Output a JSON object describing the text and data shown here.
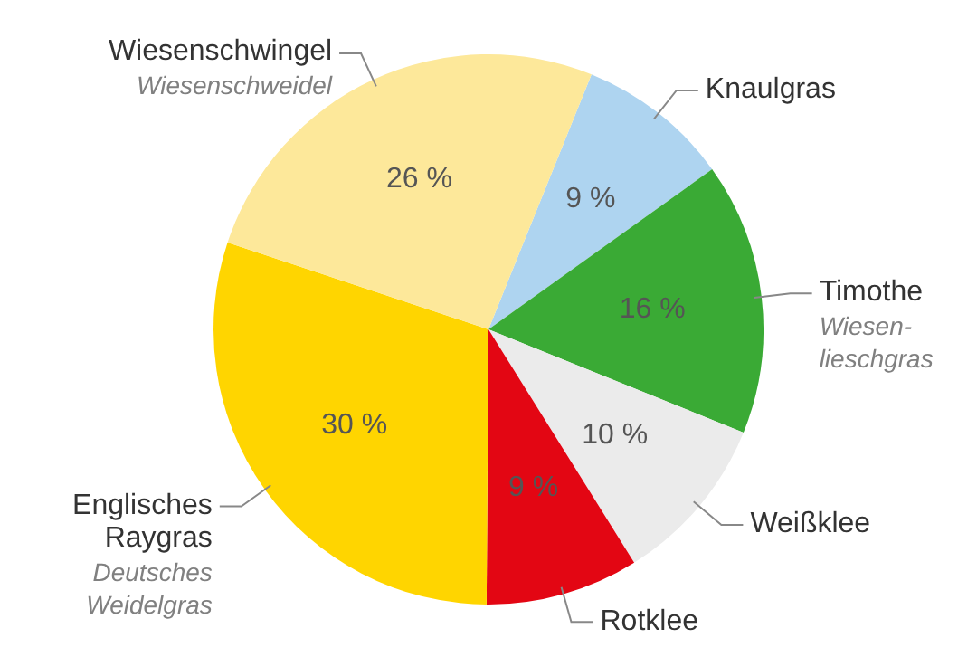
{
  "chart_data": {
    "type": "pie",
    "categories": [
      "Knaulgras",
      "Timothe",
      "Weißklee",
      "Rotklee",
      "Englisches Raygras",
      "Wiesenschwingel"
    ],
    "values": [
      9,
      16,
      10,
      9,
      30,
      26
    ],
    "colors": [
      "#aed4f0",
      "#3aaa35",
      "#ebebeb",
      "#e30613",
      "#ffd500",
      "#fde89a"
    ],
    "value_labels": [
      "9 %",
      "16 %",
      "10 %",
      "9 %",
      "30 %",
      "26 %"
    ],
    "annotations": [
      {
        "text": "Wiesen-lieschgras",
        "x": "Timothe"
      },
      {
        "text": "Deutsches Weidelgras",
        "x": "Englisches Raygras"
      },
      {
        "text": "Wiesenschweidel",
        "x": "Wiesenschwingel"
      }
    ],
    "legend": false
  }
}
